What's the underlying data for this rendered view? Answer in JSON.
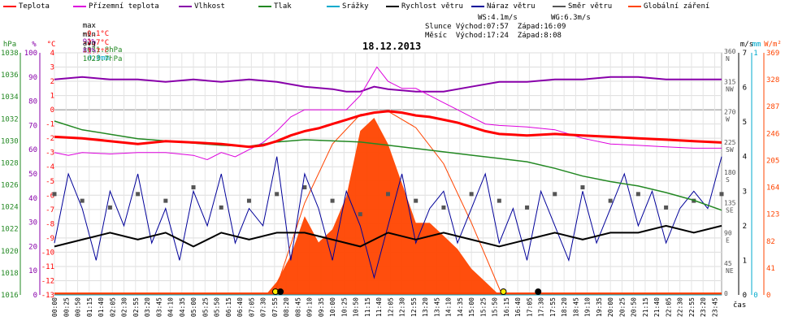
{
  "legend": [
    {
      "label": "Teplota",
      "color": "#ff0000"
    },
    {
      "label": "Přízemní teplota",
      "color": "#dd00dd"
    },
    {
      "label": "Vlhkost",
      "color": "#8800aa"
    },
    {
      "label": "Tlak",
      "color": "#228822"
    },
    {
      "label": "Srážky",
      "color": "#00aacc"
    },
    {
      "label": "Rychlost větru",
      "color": "#000000"
    },
    {
      "label": "Náraz větru",
      "color": "#000099"
    },
    {
      "label": "Směr větru",
      "color": "#555555"
    },
    {
      "label": "Globální záření",
      "color": "#ff4400"
    }
  ],
  "stats": {
    "max_label": "max",
    "max_temp": "-0.1°C",
    "max_hum": "91%",
    "max_press": "1031.8hPa",
    "max_rain": "0.0mm",
    "min_label": "min",
    "min_temp": "-2.7°C",
    "min_hum": "83%",
    "min_press": "1023.7hPa",
    "avg_label": "avg",
    "avg_temp": "-1.7°C"
  },
  "info": {
    "ws": "WS:4.1m/s",
    "wg": "WG:6.3m/s",
    "slunce": "Slunce Východ:07:57  Západ:16:09",
    "mesic": "Měsíc  Východ:17:24  Západ:8:08"
  },
  "date_title": "18.12.2013",
  "axes": {
    "hpa_unit": "hPa",
    "pct_unit": "%",
    "degc_unit": "°C",
    "ms_unit": "m/s",
    "mm_unit": "mm",
    "wm2_unit": "W/m²",
    "time_label": "čas",
    "hpa_ticks": [
      "1038",
      "1036",
      "1034",
      "1032",
      "1030",
      "1028",
      "1026",
      "1024",
      "1022",
      "1020",
      "1018",
      "1016"
    ],
    "pct_ticks": [
      "100",
      "90",
      "80",
      "70",
      "60",
      "50",
      "40",
      "30",
      "20",
      "10",
      "0"
    ],
    "degc_ticks": [
      "4",
      "3",
      "2",
      "1",
      "0",
      "-1",
      "-2",
      "-3",
      "-4",
      "-5",
      "-6",
      "-7",
      "-8",
      "-9",
      "-10",
      "-11",
      "-12",
      "-13"
    ],
    "dir_ticks": [
      "360 N",
      "315 NW",
      "270 W",
      "225 SW",
      "180 S",
      "135 SE",
      "90 E",
      "45 NE",
      "0"
    ],
    "ms_ticks": [
      "7",
      "6",
      "5",
      "4",
      "3",
      "2",
      "1",
      "0"
    ],
    "mm_ticks": [
      "1",
      "0"
    ],
    "rad_ticks": [
      "369",
      "328",
      "287",
      "246",
      "205",
      "164",
      "123",
      "82",
      "41",
      "0"
    ],
    "time_ticks": [
      "00:00",
      "00:25",
      "00:50",
      "01:15",
      "01:40",
      "02:05",
      "02:30",
      "02:55",
      "03:20",
      "03:45",
      "04:10",
      "04:35",
      "05:00",
      "05:25",
      "05:50",
      "06:15",
      "06:40",
      "07:05",
      "07:30",
      "07:55",
      "08:20",
      "08:45",
      "09:10",
      "09:35",
      "10:00",
      "10:25",
      "10:50",
      "11:15",
      "11:40",
      "12:05",
      "12:30",
      "12:55",
      "13:20",
      "13:45",
      "14:10",
      "14:35",
      "15:00",
      "15:25",
      "15:50",
      "16:15",
      "16:40",
      "17:05",
      "17:30",
      "17:55",
      "18:20",
      "18:45",
      "19:10",
      "19:35",
      "20:00",
      "20:25",
      "20:50",
      "21:15",
      "21:40",
      "22:05",
      "22:30",
      "22:55",
      "23:20",
      "23:45"
    ]
  },
  "chart_data": {
    "type": "line",
    "title": "18.12.2013",
    "x_unit": "hours",
    "xlim": [
      0,
      24
    ],
    "series": [
      {
        "name": "Teplota",
        "unit": "°C",
        "ylim": [
          -13,
          4
        ],
        "color": "#ff0000",
        "points": [
          [
            0,
            -1.9
          ],
          [
            1,
            -2.0
          ],
          [
            2,
            -2.2
          ],
          [
            3,
            -2.4
          ],
          [
            4,
            -2.2
          ],
          [
            5,
            -2.3
          ],
          [
            6,
            -2.4
          ],
          [
            7,
            -2.6
          ],
          [
            7.5,
            -2.5
          ],
          [
            8,
            -2.2
          ],
          [
            8.5,
            -1.8
          ],
          [
            9,
            -1.5
          ],
          [
            9.5,
            -1.3
          ],
          [
            10,
            -1.0
          ],
          [
            10.5,
            -0.7
          ],
          [
            11,
            -0.4
          ],
          [
            11.5,
            -0.2
          ],
          [
            12,
            -0.1
          ],
          [
            12.5,
            -0.2
          ],
          [
            13,
            -0.4
          ],
          [
            13.5,
            -0.5
          ],
          [
            14,
            -0.7
          ],
          [
            14.5,
            -0.9
          ],
          [
            15,
            -1.2
          ],
          [
            15.5,
            -1.5
          ],
          [
            16,
            -1.7
          ],
          [
            17,
            -1.8
          ],
          [
            18,
            -1.7
          ],
          [
            19,
            -1.8
          ],
          [
            20,
            -1.9
          ],
          [
            21,
            -2.0
          ],
          [
            22,
            -2.1
          ],
          [
            23,
            -2.2
          ],
          [
            24,
            -2.3
          ]
        ]
      },
      {
        "name": "Přízemní teplota",
        "unit": "°C",
        "ylim": [
          -13,
          4
        ],
        "color": "#dd00dd",
        "points": [
          [
            0,
            -3.0
          ],
          [
            0.5,
            -3.2
          ],
          [
            1,
            -3.0
          ],
          [
            2,
            -3.1
          ],
          [
            3,
            -3.0
          ],
          [
            4,
            -3.0
          ],
          [
            5,
            -3.2
          ],
          [
            5.5,
            -3.5
          ],
          [
            6,
            -3.0
          ],
          [
            6.5,
            -3.3
          ],
          [
            7,
            -2.8
          ],
          [
            7.5,
            -2.3
          ],
          [
            8,
            -1.5
          ],
          [
            8.5,
            -0.5
          ],
          [
            9,
            0.0
          ],
          [
            9.5,
            0.0
          ],
          [
            10,
            0.0
          ],
          [
            10.5,
            0.0
          ],
          [
            11,
            1.0
          ],
          [
            11.3,
            2.0
          ],
          [
            11.6,
            3.0
          ],
          [
            12,
            2.0
          ],
          [
            12.5,
            1.5
          ],
          [
            13,
            1.5
          ],
          [
            13.5,
            1.0
          ],
          [
            14,
            0.5
          ],
          [
            14.5,
            0.0
          ],
          [
            15,
            -0.5
          ],
          [
            15.5,
            -1.0
          ],
          [
            16,
            -1.1
          ],
          [
            17,
            -1.2
          ],
          [
            18,
            -1.4
          ],
          [
            18.5,
            -1.7
          ],
          [
            19,
            -2.0
          ],
          [
            20,
            -2.4
          ],
          [
            21,
            -2.5
          ],
          [
            22,
            -2.6
          ],
          [
            23,
            -2.7
          ],
          [
            24,
            -2.7
          ]
        ]
      },
      {
        "name": "Vlhkost",
        "unit": "%",
        "ylim": [
          0,
          100
        ],
        "color": "#8800aa",
        "points": [
          [
            0,
            89
          ],
          [
            1,
            90
          ],
          [
            2,
            89
          ],
          [
            3,
            89
          ],
          [
            4,
            88
          ],
          [
            5,
            89
          ],
          [
            6,
            88
          ],
          [
            7,
            89
          ],
          [
            8,
            88
          ],
          [
            9,
            86
          ],
          [
            10,
            85
          ],
          [
            10.5,
            84
          ],
          [
            11,
            84
          ],
          [
            11.5,
            86
          ],
          [
            12,
            85
          ],
          [
            13,
            84
          ],
          [
            14,
            84
          ],
          [
            15,
            86
          ],
          [
            16,
            88
          ],
          [
            17,
            88
          ],
          [
            18,
            89
          ],
          [
            19,
            89
          ],
          [
            20,
            90
          ],
          [
            21,
            90
          ],
          [
            22,
            89
          ],
          [
            23,
            89
          ],
          [
            24,
            89
          ]
        ]
      },
      {
        "name": "Tlak",
        "unit": "hPa",
        "ylim": [
          1016,
          1038
        ],
        "color": "#228822",
        "points": [
          [
            0,
            1031.8
          ],
          [
            1,
            1031.0
          ],
          [
            2,
            1030.6
          ],
          [
            3,
            1030.2
          ],
          [
            4,
            1030.0
          ],
          [
            5,
            1029.8
          ],
          [
            6,
            1029.6
          ],
          [
            7,
            1029.5
          ],
          [
            8,
            1029.9
          ],
          [
            9,
            1030.1
          ],
          [
            10,
            1030.0
          ],
          [
            11,
            1029.9
          ],
          [
            12,
            1029.6
          ],
          [
            13,
            1029.3
          ],
          [
            14,
            1029.0
          ],
          [
            15,
            1028.7
          ],
          [
            16,
            1028.4
          ],
          [
            17,
            1028.1
          ],
          [
            18,
            1027.5
          ],
          [
            19,
            1026.8
          ],
          [
            20,
            1026.3
          ],
          [
            21,
            1025.9
          ],
          [
            22,
            1025.3
          ],
          [
            23,
            1024.6
          ],
          [
            24,
            1023.7
          ]
        ]
      },
      {
        "name": "Srážky",
        "unit": "mm",
        "ylim": [
          0,
          1
        ],
        "color": "#00aacc",
        "points": [
          [
            0,
            0
          ],
          [
            24,
            0
          ]
        ]
      },
      {
        "name": "Rychlost větru",
        "unit": "m/s",
        "ylim": [
          0,
          7
        ],
        "color": "#000000",
        "points": [
          [
            0,
            1.4
          ],
          [
            1,
            1.6
          ],
          [
            2,
            1.8
          ],
          [
            3,
            1.6
          ],
          [
            4,
            1.8
          ],
          [
            5,
            1.4
          ],
          [
            6,
            1.8
          ],
          [
            7,
            1.6
          ],
          [
            8,
            1.8
          ],
          [
            9,
            1.8
          ],
          [
            10,
            1.6
          ],
          [
            11,
            1.4
          ],
          [
            12,
            1.8
          ],
          [
            13,
            1.6
          ],
          [
            14,
            1.8
          ],
          [
            15,
            1.6
          ],
          [
            16,
            1.4
          ],
          [
            17,
            1.6
          ],
          [
            18,
            1.8
          ],
          [
            19,
            1.6
          ],
          [
            20,
            1.8
          ],
          [
            21,
            1.8
          ],
          [
            22,
            2.0
          ],
          [
            23,
            1.8
          ],
          [
            24,
            2.0
          ]
        ]
      },
      {
        "name": "Náraz větru",
        "unit": "m/s",
        "ylim": [
          0,
          7
        ],
        "color": "#000099",
        "points": [
          [
            0,
            1.5
          ],
          [
            0.5,
            3.5
          ],
          [
            1,
            2.5
          ],
          [
            1.5,
            1.0
          ],
          [
            2,
            3.0
          ],
          [
            2.5,
            2.0
          ],
          [
            3,
            3.5
          ],
          [
            3.5,
            1.5
          ],
          [
            4,
            2.5
          ],
          [
            4.5,
            1.0
          ],
          [
            5,
            3.0
          ],
          [
            5.5,
            2.0
          ],
          [
            6,
            3.5
          ],
          [
            6.5,
            1.5
          ],
          [
            7,
            2.5
          ],
          [
            7.5,
            2.0
          ],
          [
            8,
            4.0
          ],
          [
            8.5,
            1.0
          ],
          [
            9,
            3.5
          ],
          [
            9.5,
            2.5
          ],
          [
            10,
            1.0
          ],
          [
            10.5,
            3.0
          ],
          [
            11,
            2.0
          ],
          [
            11.5,
            0.5
          ],
          [
            12,
            2.0
          ],
          [
            12.5,
            3.5
          ],
          [
            13,
            1.5
          ],
          [
            13.5,
            2.5
          ],
          [
            14,
            3.0
          ],
          [
            14.5,
            1.5
          ],
          [
            15,
            2.5
          ],
          [
            15.5,
            3.5
          ],
          [
            16,
            1.5
          ],
          [
            16.5,
            2.5
          ],
          [
            17,
            1.0
          ],
          [
            17.5,
            3.0
          ],
          [
            18,
            2.0
          ],
          [
            18.5,
            1.0
          ],
          [
            19,
            3.0
          ],
          [
            19.5,
            1.5
          ],
          [
            20,
            2.5
          ],
          [
            20.5,
            3.5
          ],
          [
            21,
            2.0
          ],
          [
            21.5,
            3.0
          ],
          [
            22,
            1.5
          ],
          [
            22.5,
            2.5
          ],
          [
            23,
            3.0
          ],
          [
            23.5,
            2.5
          ],
          [
            24,
            4.0
          ]
        ]
      },
      {
        "name": "Směr větru",
        "unit": "°",
        "ylim": [
          0,
          360
        ],
        "color": "#555555",
        "points": [
          [
            0,
            150
          ],
          [
            1,
            140
          ],
          [
            2,
            130
          ],
          [
            3,
            150
          ],
          [
            4,
            140
          ],
          [
            5,
            160
          ],
          [
            6,
            130
          ],
          [
            7,
            140
          ],
          [
            8,
            150
          ],
          [
            9,
            160
          ],
          [
            10,
            140
          ],
          [
            11,
            120
          ],
          [
            12,
            150
          ],
          [
            13,
            140
          ],
          [
            14,
            130
          ],
          [
            15,
            150
          ],
          [
            16,
            140
          ],
          [
            17,
            130
          ],
          [
            18,
            150
          ],
          [
            19,
            160
          ],
          [
            20,
            140
          ],
          [
            21,
            150
          ],
          [
            22,
            130
          ],
          [
            23,
            140
          ],
          [
            24,
            150
          ]
        ]
      },
      {
        "name": "Globální záření",
        "unit": "W/m²",
        "ylim": [
          0,
          369
        ],
        "color": "#ff4400",
        "points": [
          [
            0,
            0
          ],
          [
            7.6,
            0
          ],
          [
            8,
            20
          ],
          [
            8.5,
            60
          ],
          [
            9,
            120
          ],
          [
            9.5,
            80
          ],
          [
            10,
            100
          ],
          [
            10.5,
            150
          ],
          [
            11,
            250
          ],
          [
            11.5,
            270
          ],
          [
            12,
            230
          ],
          [
            12.5,
            170
          ],
          [
            13,
            110
          ],
          [
            13.5,
            110
          ],
          [
            14,
            90
          ],
          [
            14.5,
            70
          ],
          [
            15,
            40
          ],
          [
            15.5,
            20
          ],
          [
            16,
            0
          ],
          [
            24,
            0
          ]
        ]
      }
    ],
    "clear_sky_radiation": {
      "ylim": [
        0,
        369
      ],
      "points": [
        [
          7.9,
          0
        ],
        [
          9,
          140
        ],
        [
          10,
          230
        ],
        [
          11,
          275
        ],
        [
          12,
          280
        ],
        [
          13,
          255
        ],
        [
          14,
          200
        ],
        [
          15,
          110
        ],
        [
          16.1,
          0
        ]
      ]
    }
  }
}
